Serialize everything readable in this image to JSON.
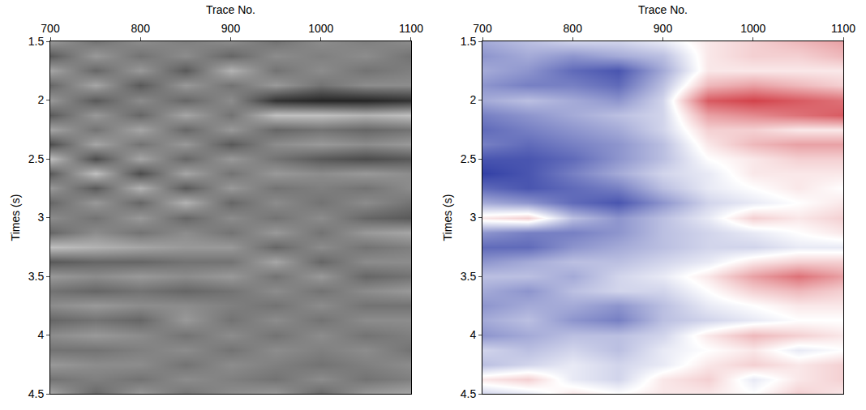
{
  "chart_data": [
    {
      "type": "heatmap",
      "xlabel": "Trace No.",
      "ylabel": "Times (s)",
      "xlim": [
        700,
        1100
      ],
      "ylim": [
        4.5,
        1.5
      ],
      "xticks": [
        700,
        800,
        900,
        1000,
        1100
      ],
      "yticks": [
        1.5,
        2,
        2.5,
        3,
        3.5,
        4,
        4.5
      ],
      "colors": [
        "#000000",
        "#ffffff"
      ],
      "zlim": [
        -1,
        1
      ],
      "x": [
        700,
        750,
        800,
        850,
        900,
        950,
        1000,
        1050,
        1100
      ],
      "y": [
        1.5,
        1.625,
        1.75,
        1.875,
        2.0,
        2.125,
        2.25,
        2.375,
        2.5,
        2.625,
        2.75,
        2.875,
        3.0,
        3.125,
        3.25,
        3.375,
        3.5,
        3.625,
        3.75,
        3.875,
        4.0,
        4.125,
        4.25,
        4.375,
        4.5
      ],
      "z": [
        [
          0.2,
          -0.1,
          0.1,
          0.0,
          0.1,
          -0.1,
          0.1,
          0.0,
          0.1
        ],
        [
          -0.3,
          0.2,
          -0.1,
          0.1,
          -0.2,
          0.1,
          0.0,
          0.1,
          -0.1
        ],
        [
          0.3,
          -0.2,
          0.2,
          -0.3,
          0.4,
          -0.1,
          0.1,
          -0.1,
          0.0
        ],
        [
          -0.2,
          0.3,
          -0.3,
          0.2,
          -0.1,
          0.2,
          -0.1,
          0.1,
          0.1
        ],
        [
          0.2,
          -0.3,
          0.1,
          -0.2,
          0.1,
          -0.6,
          -0.7,
          -0.7,
          -0.6
        ],
        [
          -0.3,
          0.2,
          -0.2,
          0.3,
          -0.1,
          0.5,
          0.5,
          0.4,
          0.5
        ],
        [
          0.3,
          -0.1,
          0.3,
          -0.2,
          0.2,
          -0.2,
          -0.1,
          -0.2,
          -0.1
        ],
        [
          -0.4,
          0.3,
          -0.1,
          0.2,
          -0.3,
          0.1,
          0.2,
          0.1,
          0.2
        ],
        [
          0.5,
          -0.4,
          0.3,
          -0.2,
          0.2,
          -0.1,
          -0.3,
          -0.4,
          -0.3
        ],
        [
          -0.3,
          0.5,
          -0.4,
          0.3,
          -0.1,
          0.2,
          0.1,
          0.2,
          0.1
        ],
        [
          0.2,
          -0.3,
          0.4,
          -0.3,
          0.2,
          -0.1,
          0.0,
          -0.1,
          0.1
        ],
        [
          -0.2,
          0.2,
          -0.2,
          0.4,
          -0.2,
          0.1,
          -0.1,
          0.1,
          -0.1
        ],
        [
          0.1,
          -0.1,
          0.2,
          -0.2,
          0.1,
          -0.1,
          0.1,
          -0.2,
          -0.3
        ],
        [
          -0.2,
          0.1,
          -0.1,
          0.1,
          -0.1,
          0.2,
          -0.1,
          0.2,
          0.3
        ],
        [
          0.5,
          0.4,
          0.3,
          0.2,
          0.2,
          -0.2,
          0.1,
          -0.1,
          0.0
        ],
        [
          -0.3,
          -0.2,
          -0.2,
          -0.1,
          -0.1,
          0.3,
          -0.2,
          0.1,
          0.1
        ],
        [
          0.2,
          0.1,
          0.2,
          0.1,
          0.2,
          -0.1,
          0.2,
          -0.2,
          -0.1
        ],
        [
          -0.1,
          -0.2,
          -0.1,
          -0.2,
          -0.1,
          0.1,
          -0.1,
          0.1,
          0.2
        ],
        [
          0.1,
          0.2,
          0.1,
          0.1,
          0.0,
          -0.1,
          0.1,
          -0.1,
          -0.1
        ],
        [
          -0.2,
          -0.1,
          -0.2,
          0.2,
          -0.1,
          0.1,
          -0.1,
          0.1,
          0.1
        ],
        [
          0.1,
          0.2,
          0.1,
          -0.1,
          0.1,
          -0.1,
          0.1,
          -0.1,
          0.0
        ],
        [
          -0.1,
          -0.1,
          0.0,
          0.1,
          -0.1,
          0.1,
          0.0,
          0.1,
          -0.1
        ],
        [
          0.2,
          0.1,
          0.1,
          -0.1,
          0.1,
          0.0,
          -0.1,
          0.0,
          0.1
        ],
        [
          -0.1,
          0.0,
          -0.1,
          0.1,
          0.0,
          -0.1,
          0.1,
          -0.1,
          0.0
        ],
        [
          0.3,
          -0.2,
          0.2,
          -0.1,
          0.1,
          0.2,
          -0.2,
          0.2,
          0.3
        ]
      ]
    },
    {
      "type": "heatmap",
      "xlabel": "Trace No.",
      "ylabel": "Times (s)",
      "xlim": [
        700,
        1100
      ],
      "ylim": [
        4.5,
        1.5
      ],
      "xticks": [
        700,
        800,
        900,
        1000,
        1100
      ],
      "yticks": [
        1.5,
        2,
        2.5,
        3,
        3.5,
        4,
        4.5
      ],
      "colors": [
        "#1c2b9c",
        "#ffffff",
        "#c8141e"
      ],
      "zlim": [
        -1,
        1
      ],
      "x": [
        700,
        750,
        800,
        850,
        900,
        950,
        1000,
        1050,
        1100
      ],
      "y": [
        1.5,
        1.625,
        1.75,
        1.875,
        2.0,
        2.125,
        2.25,
        2.375,
        2.5,
        2.625,
        2.75,
        2.875,
        3.0,
        3.125,
        3.25,
        3.375,
        3.5,
        3.625,
        3.75,
        3.875,
        4.0,
        4.125,
        4.25,
        4.375,
        4.5
      ],
      "z": [
        [
          -0.4,
          -0.3,
          -0.2,
          -0.2,
          -0.1,
          0.1,
          0.2,
          0.3,
          0.4
        ],
        [
          -0.5,
          -0.4,
          -0.5,
          -0.4,
          -0.3,
          0.1,
          0.2,
          0.2,
          0.3
        ],
        [
          -0.4,
          -0.5,
          -0.7,
          -0.8,
          -0.4,
          0.1,
          0.1,
          0.1,
          0.1
        ],
        [
          -0.5,
          -0.6,
          -0.6,
          -0.7,
          -0.3,
          0.3,
          0.4,
          0.3,
          0.2
        ],
        [
          -0.4,
          -0.3,
          -0.4,
          -0.5,
          -0.2,
          0.7,
          0.8,
          0.7,
          0.6
        ],
        [
          -0.6,
          -0.5,
          -0.4,
          -0.3,
          -0.2,
          0.4,
          0.5,
          0.6,
          0.7
        ],
        [
          -0.7,
          -0.6,
          -0.5,
          -0.4,
          -0.2,
          0.2,
          0.2,
          0.1,
          0.1
        ],
        [
          -0.6,
          -0.7,
          -0.6,
          -0.5,
          -0.3,
          0.1,
          0.3,
          0.4,
          0.4
        ],
        [
          -0.8,
          -0.8,
          -0.7,
          -0.5,
          -0.3,
          0.0,
          0.1,
          0.2,
          0.2
        ],
        [
          -0.9,
          -0.8,
          -0.6,
          -0.4,
          -0.2,
          -0.1,
          0.1,
          0.1,
          0.1
        ],
        [
          -0.7,
          -0.8,
          -0.7,
          -0.6,
          -0.3,
          -0.1,
          0.0,
          0.1,
          0.0
        ],
        [
          -0.4,
          -0.5,
          -0.7,
          -0.8,
          -0.5,
          -0.2,
          -0.1,
          0.0,
          0.1
        ],
        [
          0.1,
          0.2,
          -0.3,
          -0.5,
          -0.3,
          -0.1,
          0.2,
          0.1,
          0.2
        ],
        [
          -0.5,
          -0.6,
          -0.6,
          -0.5,
          -0.3,
          -0.2,
          -0.1,
          0.0,
          0.1
        ],
        [
          -0.7,
          -0.7,
          -0.5,
          -0.4,
          -0.3,
          -0.2,
          -0.2,
          -0.1,
          -0.1
        ],
        [
          -0.5,
          -0.4,
          -0.3,
          -0.3,
          -0.2,
          -0.1,
          0.1,
          0.2,
          0.2
        ],
        [
          -0.3,
          -0.3,
          -0.4,
          -0.2,
          -0.1,
          0.1,
          0.4,
          0.6,
          0.4
        ],
        [
          -0.4,
          -0.5,
          -0.3,
          -0.2,
          -0.2,
          0.0,
          0.2,
          0.3,
          0.2
        ],
        [
          -0.5,
          -0.4,
          -0.4,
          -0.5,
          -0.3,
          -0.1,
          0.0,
          0.1,
          0.1
        ],
        [
          -0.4,
          -0.3,
          -0.5,
          -0.6,
          -0.3,
          -0.2,
          -0.1,
          0.0,
          0.0
        ],
        [
          -0.5,
          -0.4,
          -0.3,
          -0.3,
          -0.2,
          0.1,
          0.3,
          0.2,
          0.1
        ],
        [
          -0.2,
          -0.3,
          -0.2,
          -0.3,
          -0.1,
          0.0,
          0.1,
          -0.1,
          0.0
        ],
        [
          -0.3,
          -0.2,
          -0.1,
          -0.2,
          -0.1,
          0.1,
          0.2,
          0.1,
          0.2
        ],
        [
          0.1,
          0.2,
          -0.1,
          -0.2,
          0.1,
          0.2,
          -0.1,
          0.1,
          0.2
        ],
        [
          -0.2,
          -0.1,
          0.1,
          0.0,
          0.1,
          0.1,
          0.0,
          0.2,
          0.1
        ]
      ]
    }
  ]
}
